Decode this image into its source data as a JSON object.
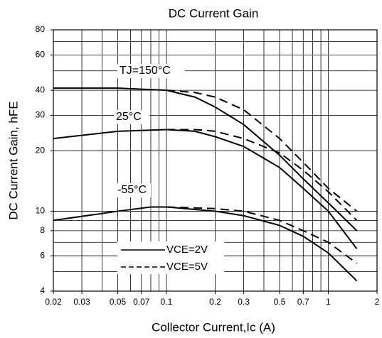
{
  "chart_data": {
    "type": "line",
    "title": "DC Current Gain",
    "x_label": "Collector Current,Ic (A)",
    "y_label": "DC Current Gain, hFE",
    "log_x": true,
    "log_y": true,
    "grid": true,
    "color": "#000000",
    "xlim": [
      0.02,
      2
    ],
    "ylim": [
      4,
      80
    ],
    "xticks": [
      0.02,
      0.03,
      0.05,
      0.07,
      0.1,
      0.2,
      0.3,
      0.5,
      0.7,
      1,
      2
    ],
    "yticks": [
      4,
      6,
      8,
      10,
      20,
      30,
      40,
      60,
      80
    ],
    "x_gridlines": [
      0.02,
      0.03,
      0.04,
      0.05,
      0.06,
      0.07,
      0.08,
      0.09,
      0.1,
      0.2,
      0.3,
      0.4,
      0.5,
      0.6,
      0.7,
      0.8,
      0.9,
      1,
      2
    ],
    "y_gridlines": [
      4,
      5,
      6,
      7,
      8,
      9,
      10,
      20,
      30,
      40,
      50,
      60,
      70,
      80
    ],
    "annotations": [
      "TJ=150°C",
      "25°C",
      "-55°C"
    ],
    "legend": [
      {
        "label": "VCE=2V",
        "dashed": false
      },
      {
        "label": "VCE=5V",
        "dashed": true
      }
    ],
    "series": [
      {
        "dashed": false,
        "x": [
          0.02,
          0.05,
          0.1,
          0.15,
          0.2,
          0.3,
          0.5,
          0.7,
          1,
          1.5
        ],
        "values": [
          41,
          41,
          40,
          37,
          33,
          27,
          19,
          14.5,
          11,
          8
        ]
      },
      {
        "dashed": true,
        "x": [
          0.1,
          0.15,
          0.2,
          0.3,
          0.5,
          0.7,
          1,
          1.5
        ],
        "values": [
          40,
          39,
          37,
          32,
          23,
          17.5,
          13,
          10
        ]
      },
      {
        "dashed": false,
        "x": [
          0.02,
          0.05,
          0.1,
          0.15,
          0.2,
          0.3,
          0.5,
          0.7,
          1,
          1.5
        ],
        "values": [
          23,
          25,
          25.5,
          25,
          23.5,
          21,
          16.5,
          13,
          10,
          6.5
        ]
      },
      {
        "dashed": true,
        "x": [
          0.1,
          0.15,
          0.2,
          0.3,
          0.5,
          0.7,
          1,
          1.5
        ],
        "values": [
          25.5,
          25.5,
          25,
          23,
          19.5,
          16,
          12.5,
          9
        ]
      },
      {
        "dashed": false,
        "x": [
          0.02,
          0.05,
          0.08,
          0.1,
          0.2,
          0.3,
          0.5,
          0.7,
          1,
          1.5
        ],
        "values": [
          9,
          10,
          10.5,
          10.5,
          10,
          9.5,
          8.5,
          7.5,
          6.2,
          4.5
        ]
      },
      {
        "dashed": true,
        "x": [
          0.1,
          0.2,
          0.3,
          0.5,
          0.7,
          1,
          1.5
        ],
        "values": [
          10.5,
          10.3,
          10,
          9,
          8,
          7,
          5.5
        ]
      }
    ]
  }
}
